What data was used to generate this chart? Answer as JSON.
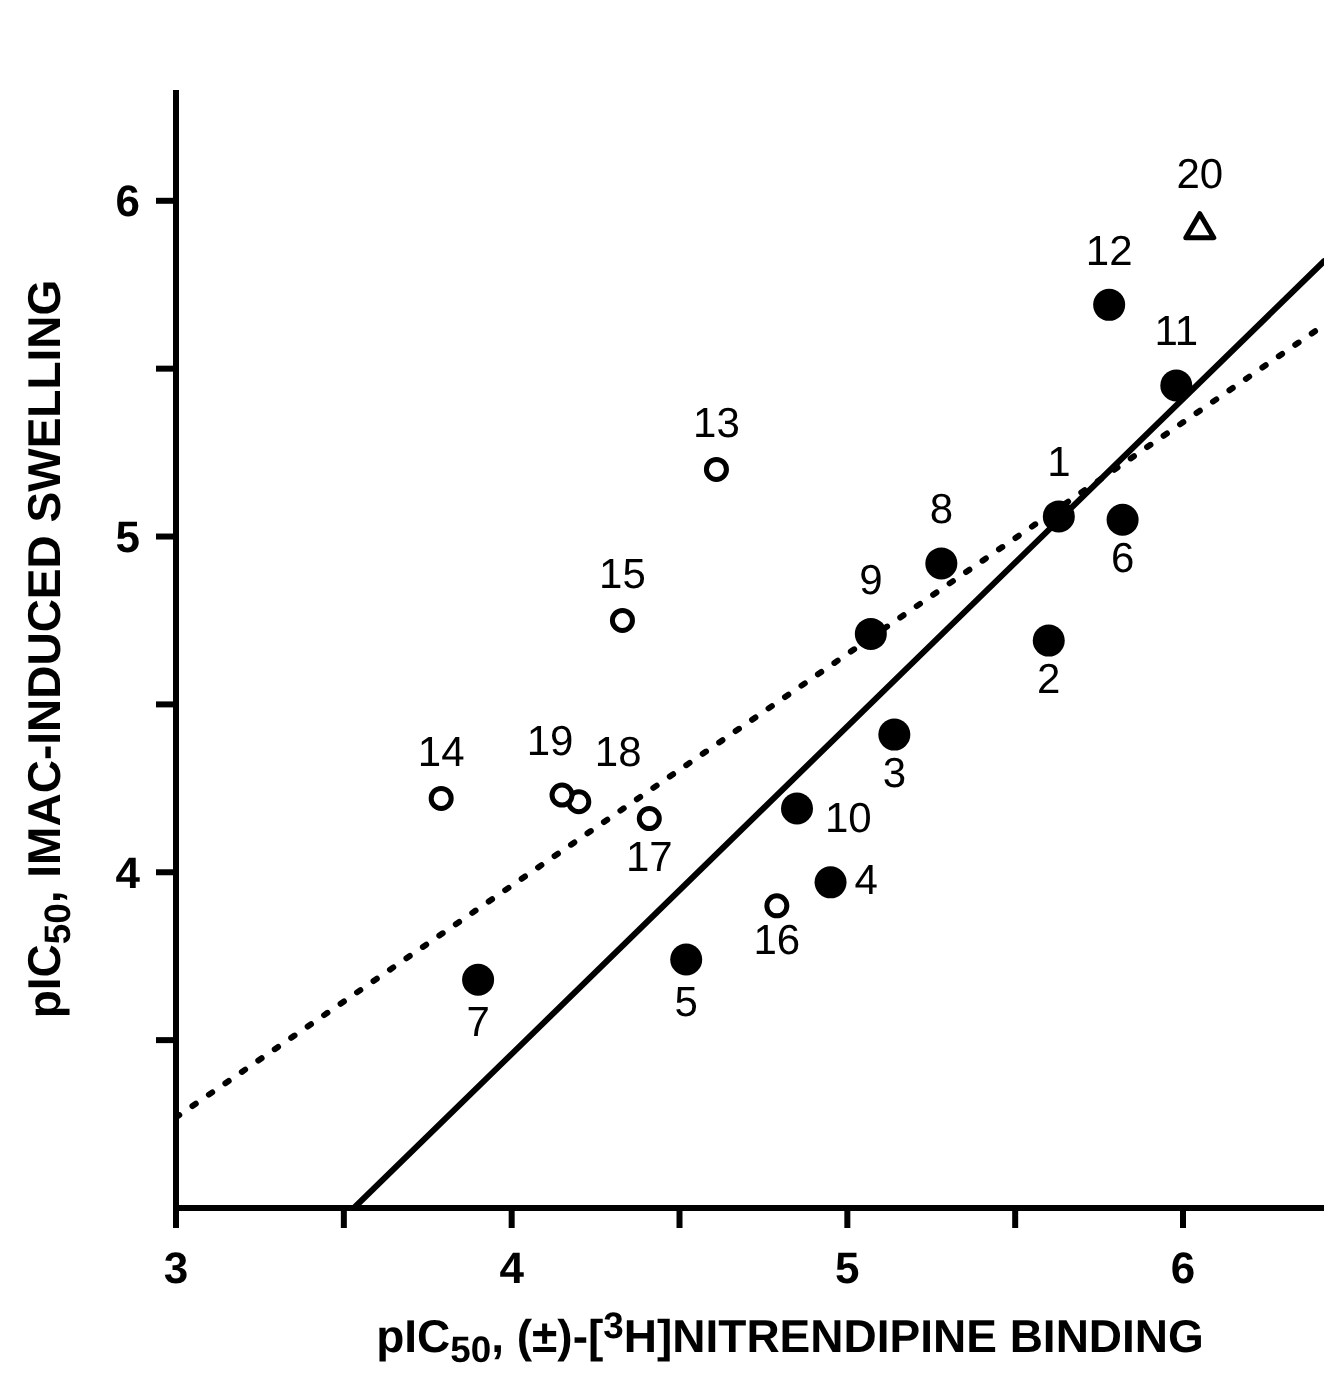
{
  "chart_data": {
    "type": "scatter",
    "xlabel": "pIC$_{50}$, (±)-[$^{3}$H]NITRENDIPINE BINDING",
    "ylabel": "pIC$_{50}$, IMAC-INDUCED SWELLING",
    "xlim": [
      3,
      6.42
    ],
    "ylim": [
      3,
      6.33
    ],
    "xticks": [
      3,
      {
        "value": 3.5,
        "label": null
      },
      4,
      {
        "value": 4.5,
        "label": null
      },
      5,
      {
        "value": 5.5,
        "label": null
      },
      6
    ],
    "yticks": [
      {
        "value": 3.5,
        "label": null
      },
      4,
      {
        "value": 4.5,
        "label": null
      },
      5,
      {
        "value": 5.5,
        "label": null
      },
      6
    ],
    "series": [
      {
        "marker": "circle",
        "color": "#000000",
        "x": [
          5.63,
          5.6,
          5.14,
          4.95,
          4.52,
          5.82,
          3.9,
          5.28,
          5.07,
          4.85,
          5.98,
          5.78
        ],
        "values": [
          5.06,
          4.69,
          4.41,
          3.97,
          3.74,
          5.05,
          3.68,
          4.92,
          4.71,
          4.19,
          5.45,
          5.69
        ]
      },
      {
        "marker": "circle",
        "color": "#000000",
        "x": [
          4.61,
          3.79,
          4.33,
          4.79,
          4.41,
          4.2,
          4.15
        ],
        "values": [
          5.2,
          4.22,
          4.75,
          3.9,
          4.16,
          4.21,
          4.23
        ]
      },
      {
        "marker": "triangle",
        "color": "#000000",
        "x": [
          6.05
        ],
        "values": [
          5.92
        ]
      },
      {
        "type": "line",
        "marker": "none",
        "line_style": "solid",
        "color": "#000000",
        "x": [
          3.53,
          6.42
        ],
        "values": [
          3,
          5.82
        ]
      },
      {
        "type": "line",
        "marker": "none",
        "line_style": "dotted",
        "color": "#000000",
        "x": [
          3,
          6.42
        ],
        "values": [
          3.27,
          5.63
        ]
      }
    ],
    "annotations": [
      {
        "text": "1",
        "x": 5.63,
        "y": 5.06
      },
      {
        "text": "2",
        "x": 5.6,
        "y": 4.69
      },
      {
        "text": "3",
        "x": 5.14,
        "y": 4.41
      },
      {
        "text": "4",
        "x": 4.95,
        "y": 3.97
      },
      {
        "text": "5",
        "x": 4.52,
        "y": 3.74
      },
      {
        "text": "6",
        "x": 5.82,
        "y": 5.05
      },
      {
        "text": "7",
        "x": 3.9,
        "y": 3.68
      },
      {
        "text": "8",
        "x": 5.28,
        "y": 4.92
      },
      {
        "text": "9",
        "x": 5.07,
        "y": 4.71
      },
      {
        "text": "10",
        "x": 4.85,
        "y": 4.19
      },
      {
        "text": "11",
        "x": 5.98,
        "y": 5.45
      },
      {
        "text": "12",
        "x": 5.78,
        "y": 5.69
      },
      {
        "text": "13",
        "x": 4.61,
        "y": 5.2
      },
      {
        "text": "14",
        "x": 3.79,
        "y": 4.22
      },
      {
        "text": "15",
        "x": 4.33,
        "y": 4.75
      },
      {
        "text": "16",
        "x": 4.79,
        "y": 3.9
      },
      {
        "text": "17",
        "x": 4.41,
        "y": 4.16
      },
      {
        "text": "18",
        "x": 4.2,
        "y": 4.21
      },
      {
        "text": "19",
        "x": 4.15,
        "y": 4.23
      },
      {
        "text": "20",
        "x": 6.05,
        "y": 5.92
      }
    ]
  }
}
